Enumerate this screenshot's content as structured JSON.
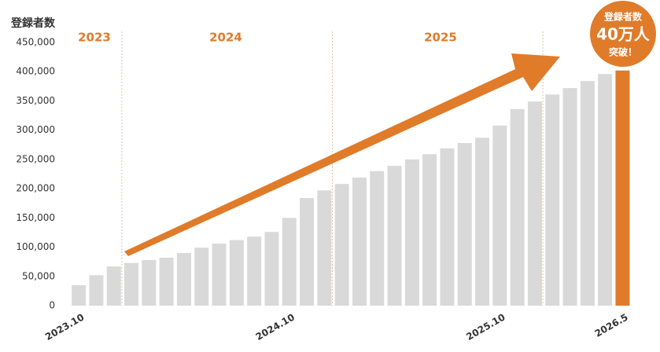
{
  "chart_data": {
    "type": "bar",
    "y_axis_title": "登録者数",
    "categories": [
      "2023.10",
      null,
      null,
      null,
      null,
      null,
      null,
      null,
      null,
      null,
      null,
      null,
      "2024.10",
      null,
      null,
      null,
      null,
      null,
      null,
      null,
      null,
      null,
      null,
      null,
      "2025.10",
      null,
      null,
      null,
      null,
      null,
      null,
      "2026.5"
    ],
    "values": [
      35000,
      52000,
      67000,
      73000,
      78000,
      82000,
      90000,
      99000,
      106000,
      112000,
      118000,
      126000,
      150000,
      184000,
      197000,
      208000,
      219000,
      230000,
      239000,
      250000,
      259000,
      269000,
      278000,
      287000,
      308000,
      336000,
      349000,
      361000,
      372000,
      384000,
      396000,
      402000
    ],
    "colors": [
      "#d9d9d9",
      "#d9d9d9",
      "#d9d9d9",
      "#d9d9d9",
      "#d9d9d9",
      "#d9d9d9",
      "#d9d9d9",
      "#d9d9d9",
      "#d9d9d9",
      "#d9d9d9",
      "#d9d9d9",
      "#d9d9d9",
      "#d9d9d9",
      "#d9d9d9",
      "#d9d9d9",
      "#d9d9d9",
      "#d9d9d9",
      "#d9d9d9",
      "#d9d9d9",
      "#d9d9d9",
      "#d9d9d9",
      "#d9d9d9",
      "#d9d9d9",
      "#d9d9d9",
      "#d9d9d9",
      "#d9d9d9",
      "#d9d9d9",
      "#d9d9d9",
      "#d9d9d9",
      "#d9d9d9",
      "#d9d9d9",
      "#e07b2a"
    ],
    "ylim": [
      0,
      450000
    ],
    "yticks": [
      0,
      {
        "value": 50000,
        "label": "50,000"
      },
      {
        "value": 100000,
        "label": "100,000"
      },
      {
        "value": 150000,
        "label": "150,000"
      },
      {
        "value": 200000,
        "label": "200,000"
      },
      {
        "value": 250000,
        "label": "250,000"
      },
      {
        "value": 300000,
        "label": "300,000"
      },
      {
        "value": 350000,
        "label": "350,000"
      },
      {
        "value": 400000,
        "label": "400,000"
      },
      {
        "value": 450000,
        "label": "450,000"
      }
    ],
    "year_labels": [
      "2023",
      "2024",
      "2025"
    ],
    "badge": [
      "登録者数",
      "40万人",
      "突破！"
    ]
  }
}
